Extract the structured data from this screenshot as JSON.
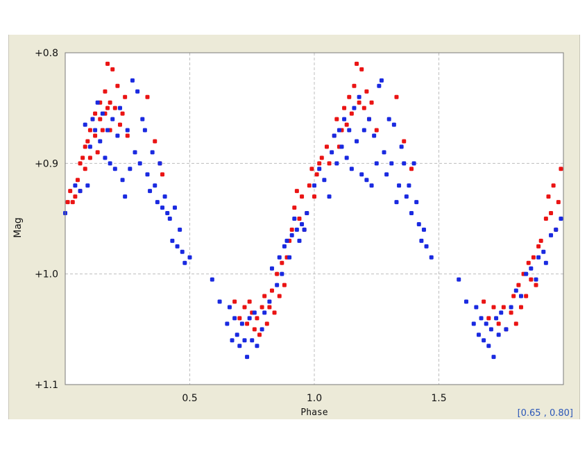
{
  "colors": {
    "series1": "#ea1414",
    "series2": "#1a2ae0",
    "grid": "#bdbdbd",
    "panel": "#ecead8"
  },
  "coord_readout": "[0.65 , 0.80]",
  "chart_data": {
    "type": "scatter",
    "title": "",
    "xlabel": "Phase",
    "ylabel": "Mag",
    "xlim": [
      0.0,
      2.0
    ],
    "ylim": [
      1.1,
      0.8
    ],
    "y_inverted": true,
    "grid": true,
    "x_ticks": [
      0.5,
      1.0,
      1.5
    ],
    "x_tick_labels": [
      "0.5",
      "1.0",
      "1.5"
    ],
    "y_ticks": [
      0.8,
      0.9,
      1.0,
      1.1
    ],
    "y_tick_labels": [
      "+0.8",
      "+0.9",
      "+1.0",
      "+1.1"
    ],
    "series": [
      {
        "color": "#ea1414",
        "points": [
          [
            0.01,
            0.935
          ],
          [
            0.02,
            0.925
          ],
          [
            0.03,
            0.935
          ],
          [
            0.04,
            0.93
          ],
          [
            0.05,
            0.915
          ],
          [
            0.06,
            0.9
          ],
          [
            0.06,
            0.925
          ],
          [
            0.07,
            0.895
          ],
          [
            0.08,
            0.885
          ],
          [
            0.08,
            0.905
          ],
          [
            0.09,
            0.88
          ],
          [
            0.1,
            0.87
          ],
          [
            0.1,
            0.895
          ],
          [
            0.11,
            0.86
          ],
          [
            0.12,
            0.875
          ],
          [
            0.12,
            0.855
          ],
          [
            0.13,
            0.89
          ],
          [
            0.14,
            0.86
          ],
          [
            0.14,
            0.845
          ],
          [
            0.15,
            0.87
          ],
          [
            0.16,
            0.855
          ],
          [
            0.16,
            0.835
          ],
          [
            0.17,
            0.85
          ],
          [
            0.17,
            0.81
          ],
          [
            0.18,
            0.87
          ],
          [
            0.18,
            0.845
          ],
          [
            0.19,
            0.815
          ],
          [
            0.2,
            0.85
          ],
          [
            0.21,
            0.83
          ],
          [
            0.22,
            0.865
          ],
          [
            0.23,
            0.855
          ],
          [
            0.24,
            0.84
          ],
          [
            0.25,
            0.875
          ],
          [
            0.33,
            0.84
          ],
          [
            0.36,
            0.88
          ],
          [
            0.38,
            0.9
          ],
          [
            0.39,
            0.91
          ],
          [
            0.68,
            1.025
          ],
          [
            0.7,
            1.04
          ],
          [
            0.72,
            1.03
          ],
          [
            0.73,
            1.045
          ],
          [
            0.74,
            1.025
          ],
          [
            0.75,
            1.035
          ],
          [
            0.76,
            1.05
          ],
          [
            0.77,
            1.04
          ],
          [
            0.78,
            1.055
          ],
          [
            0.79,
            1.03
          ],
          [
            0.8,
            1.02
          ],
          [
            0.81,
            1.045
          ],
          [
            0.82,
            1.03
          ],
          [
            0.83,
            1.015
          ],
          [
            0.84,
            1.035
          ],
          [
            0.85,
            1.0
          ],
          [
            0.86,
            1.02
          ],
          [
            0.87,
            0.99
          ],
          [
            0.88,
            1.01
          ],
          [
            0.89,
            0.985
          ],
          [
            0.9,
            0.97
          ],
          [
            0.91,
            0.96
          ],
          [
            0.92,
            0.94
          ],
          [
            0.93,
            0.925
          ],
          [
            0.94,
            0.95
          ],
          [
            0.95,
            0.93
          ],
          [
            0.96,
            0.96
          ],
          [
            0.97,
            0.945
          ],
          [
            0.98,
            0.92
          ],
          [
            0.99,
            0.905
          ],
          [
            1.0,
            0.93
          ],
          [
            1.01,
            0.91
          ],
          [
            1.02,
            0.9
          ],
          [
            1.03,
            0.895
          ],
          [
            1.05,
            0.885
          ],
          [
            1.06,
            0.9
          ],
          [
            1.08,
            0.875
          ],
          [
            1.09,
            0.86
          ],
          [
            1.1,
            0.885
          ],
          [
            1.11,
            0.87
          ],
          [
            1.12,
            0.85
          ],
          [
            1.13,
            0.865
          ],
          [
            1.14,
            0.84
          ],
          [
            1.15,
            0.855
          ],
          [
            1.16,
            0.83
          ],
          [
            1.17,
            0.81
          ],
          [
            1.18,
            0.845
          ],
          [
            1.19,
            0.815
          ],
          [
            1.2,
            0.85
          ],
          [
            1.21,
            0.835
          ],
          [
            1.22,
            0.86
          ],
          [
            1.23,
            0.845
          ],
          [
            1.25,
            0.87
          ],
          [
            1.33,
            0.84
          ],
          [
            1.36,
            0.88
          ],
          [
            1.39,
            0.905
          ],
          [
            1.68,
            1.025
          ],
          [
            1.7,
            1.04
          ],
          [
            1.72,
            1.03
          ],
          [
            1.74,
            1.045
          ],
          [
            1.76,
            1.03
          ],
          [
            1.77,
            1.05
          ],
          [
            1.79,
            1.035
          ],
          [
            1.8,
            1.02
          ],
          [
            1.81,
            1.045
          ],
          [
            1.82,
            1.01
          ],
          [
            1.83,
            1.03
          ],
          [
            1.84,
            1.0
          ],
          [
            1.85,
            1.02
          ],
          [
            1.86,
            0.99
          ],
          [
            1.87,
            1.005
          ],
          [
            1.88,
            0.985
          ],
          [
            1.89,
            1.01
          ],
          [
            1.9,
            0.975
          ],
          [
            1.91,
            0.97
          ],
          [
            1.93,
            0.95
          ],
          [
            1.94,
            0.93
          ],
          [
            1.95,
            0.945
          ],
          [
            1.96,
            0.92
          ],
          [
            1.97,
            0.96
          ],
          [
            1.98,
            0.935
          ],
          [
            1.99,
            0.905
          ]
        ]
      },
      {
        "color": "#1a2ae0",
        "points": [
          [
            0.0,
            0.945
          ],
          [
            0.04,
            0.92
          ],
          [
            0.06,
            0.925
          ],
          [
            0.08,
            0.865
          ],
          [
            0.09,
            0.92
          ],
          [
            0.1,
            0.885
          ],
          [
            0.11,
            0.86
          ],
          [
            0.12,
            0.87
          ],
          [
            0.13,
            0.845
          ],
          [
            0.14,
            0.88
          ],
          [
            0.15,
            0.855
          ],
          [
            0.16,
            0.895
          ],
          [
            0.17,
            0.87
          ],
          [
            0.18,
            0.9
          ],
          [
            0.19,
            0.86
          ],
          [
            0.2,
            0.905
          ],
          [
            0.21,
            0.875
          ],
          [
            0.22,
            0.85
          ],
          [
            0.23,
            0.915
          ],
          [
            0.24,
            0.93
          ],
          [
            0.25,
            0.87
          ],
          [
            0.26,
            0.905
          ],
          [
            0.27,
            0.825
          ],
          [
            0.28,
            0.89
          ],
          [
            0.29,
            0.835
          ],
          [
            0.3,
            0.9
          ],
          [
            0.31,
            0.86
          ],
          [
            0.32,
            0.87
          ],
          [
            0.33,
            0.91
          ],
          [
            0.34,
            0.925
          ],
          [
            0.35,
            0.89
          ],
          [
            0.36,
            0.92
          ],
          [
            0.37,
            0.935
          ],
          [
            0.38,
            0.9
          ],
          [
            0.39,
            0.94
          ],
          [
            0.4,
            0.93
          ],
          [
            0.41,
            0.945
          ],
          [
            0.42,
            0.95
          ],
          [
            0.43,
            0.97
          ],
          [
            0.44,
            0.94
          ],
          [
            0.45,
            0.975
          ],
          [
            0.46,
            0.96
          ],
          [
            0.47,
            0.98
          ],
          [
            0.48,
            0.99
          ],
          [
            0.5,
            0.985
          ],
          [
            0.59,
            1.005
          ],
          [
            0.62,
            1.025
          ],
          [
            0.65,
            1.045
          ],
          [
            0.66,
            1.03
          ],
          [
            0.67,
            1.06
          ],
          [
            0.68,
            1.04
          ],
          [
            0.69,
            1.055
          ],
          [
            0.7,
            1.065
          ],
          [
            0.71,
            1.045
          ],
          [
            0.72,
            1.06
          ],
          [
            0.73,
            1.075
          ],
          [
            0.74,
            1.04
          ],
          [
            0.75,
            1.06
          ],
          [
            0.76,
            1.035
          ],
          [
            0.77,
            1.065
          ],
          [
            0.79,
            1.05
          ],
          [
            0.8,
            1.035
          ],
          [
            0.82,
            1.025
          ],
          [
            0.83,
            0.995
          ],
          [
            0.85,
            1.01
          ],
          [
            0.86,
            0.985
          ],
          [
            0.87,
            1.0
          ],
          [
            0.88,
            0.975
          ],
          [
            0.89,
            0.97
          ],
          [
            0.9,
            0.985
          ],
          [
            0.91,
            0.965
          ],
          [
            0.92,
            0.95
          ],
          [
            0.93,
            0.96
          ],
          [
            0.94,
            0.97
          ],
          [
            0.95,
            0.955
          ],
          [
            0.96,
            0.96
          ],
          [
            0.97,
            0.945
          ],
          [
            1.0,
            0.92
          ],
          [
            1.02,
            0.905
          ],
          [
            1.04,
            0.915
          ],
          [
            1.06,
            0.93
          ],
          [
            1.07,
            0.89
          ],
          [
            1.08,
            0.875
          ],
          [
            1.09,
            0.9
          ],
          [
            1.1,
            0.87
          ],
          [
            1.11,
            0.885
          ],
          [
            1.12,
            0.86
          ],
          [
            1.13,
            0.895
          ],
          [
            1.14,
            0.87
          ],
          [
            1.15,
            0.905
          ],
          [
            1.16,
            0.85
          ],
          [
            1.17,
            0.88
          ],
          [
            1.18,
            0.84
          ],
          [
            1.19,
            0.91
          ],
          [
            1.2,
            0.87
          ],
          [
            1.21,
            0.915
          ],
          [
            1.22,
            0.86
          ],
          [
            1.23,
            0.92
          ],
          [
            1.24,
            0.875
          ],
          [
            1.25,
            0.9
          ],
          [
            1.26,
            0.83
          ],
          [
            1.27,
            0.825
          ],
          [
            1.28,
            0.89
          ],
          [
            1.29,
            0.91
          ],
          [
            1.3,
            0.86
          ],
          [
            1.31,
            0.9
          ],
          [
            1.32,
            0.865
          ],
          [
            1.33,
            0.935
          ],
          [
            1.34,
            0.92
          ],
          [
            1.35,
            0.885
          ],
          [
            1.36,
            0.9
          ],
          [
            1.37,
            0.93
          ],
          [
            1.38,
            0.92
          ],
          [
            1.39,
            0.945
          ],
          [
            1.4,
            0.9
          ],
          [
            1.41,
            0.935
          ],
          [
            1.42,
            0.955
          ],
          [
            1.43,
            0.97
          ],
          [
            1.44,
            0.96
          ],
          [
            1.45,
            0.975
          ],
          [
            1.47,
            0.985
          ],
          [
            1.58,
            1.005
          ],
          [
            1.61,
            1.025
          ],
          [
            1.64,
            1.045
          ],
          [
            1.65,
            1.03
          ],
          [
            1.66,
            1.055
          ],
          [
            1.67,
            1.04
          ],
          [
            1.68,
            1.06
          ],
          [
            1.69,
            1.045
          ],
          [
            1.7,
            1.065
          ],
          [
            1.71,
            1.05
          ],
          [
            1.72,
            1.075
          ],
          [
            1.73,
            1.04
          ],
          [
            1.74,
            1.055
          ],
          [
            1.75,
            1.035
          ],
          [
            1.77,
            1.05
          ],
          [
            1.79,
            1.03
          ],
          [
            1.81,
            1.015
          ],
          [
            1.83,
            1.02
          ],
          [
            1.85,
            1.0
          ],
          [
            1.87,
            0.995
          ],
          [
            1.89,
            1.005
          ],
          [
            1.9,
            0.985
          ],
          [
            1.92,
            0.98
          ],
          [
            1.93,
            0.99
          ],
          [
            1.95,
            0.965
          ],
          [
            1.97,
            0.96
          ],
          [
            1.99,
            0.95
          ]
        ]
      }
    ]
  }
}
